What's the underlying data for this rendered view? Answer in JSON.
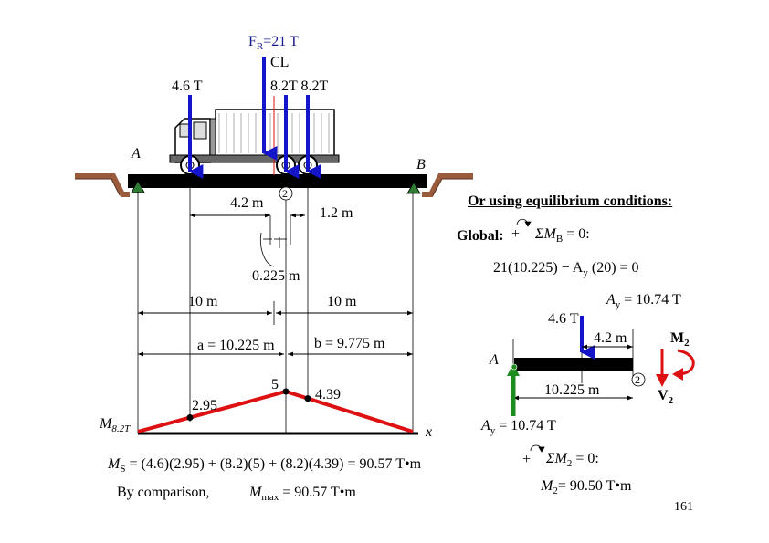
{
  "colors": {
    "arrow_blue": "#1414c8",
    "arrow_green": "#1e8c1e",
    "moment_red": "#dd1111",
    "road_brown": "#9a5a3c",
    "beam_black": "#000000",
    "support_green": "#2e7d32"
  },
  "truck": {
    "resultant_label": "F R=21 T",
    "cl_label": "CL",
    "front_load": "4.6 T",
    "rear_loads": "8.2T  8.2T",
    "point_a": "A",
    "point_b": "B",
    "dist_42": "4.2 m",
    "dist_12": "1.2 m",
    "circled_2": "2",
    "dist_0225": "0.225 m"
  },
  "dimensions": {
    "half_left": "10 m",
    "half_right": "10 m",
    "a_label": "a = 10.225 m",
    "b_label": "b = 9.775 m"
  },
  "moment_diagram": {
    "y_label": "M",
    "y_label_sub": "8.2T",
    "x_label": "x",
    "ordinates": [
      {
        "value": 2.95,
        "label": "2.95"
      },
      {
        "value": 5,
        "label": "5"
      },
      {
        "value": 4.39,
        "label": "4.39"
      }
    ]
  },
  "equations": {
    "ms_lhs": "M",
    "ms_sub": "S",
    "ms_rhs": " =   (4.6)(2.95) + (8.2)(5) + (8.2)(4.39)   = 90.57 T•m",
    "comparison": "By comparison,",
    "mmax": "M",
    "mmax_sub": "max",
    "mmax_rhs": " = 90.57 T•m"
  },
  "equilibrium": {
    "heading": "Or using equilibrium conditions:",
    "global": "Global:",
    "sum_mb": "ΣM",
    "sum_mb_sub": "B",
    "sum_mb_rhs": " = 0:",
    "eq1": "21(10.225) −  A",
    "eq1_sub": "y",
    "eq1_rhs": " (20) = 0",
    "ay_result": "A",
    "ay_result_sub": "y",
    "ay_result_rhs": " = 10.74  T",
    "fbd_load": "4.6 T",
    "fbd_dist": "4.2 m",
    "fbd_a": "A",
    "fbd_span": "10.225 m",
    "fbd_circled": "2",
    "m2_label": "M",
    "m2_sub": "2",
    "v2_label": "V",
    "v2_sub": "2",
    "fbd_ay": "A",
    "fbd_ay_sub": "y",
    "fbd_ay_rhs": " = 10.74 T",
    "sum_m2": "ΣM",
    "sum_m2_sub": "2",
    "sum_m2_rhs": " = 0:",
    "m2_result": "M",
    "m2_result_sub": "2",
    "m2_result_rhs": "= 90.50 T•m"
  },
  "page_number": "161"
}
